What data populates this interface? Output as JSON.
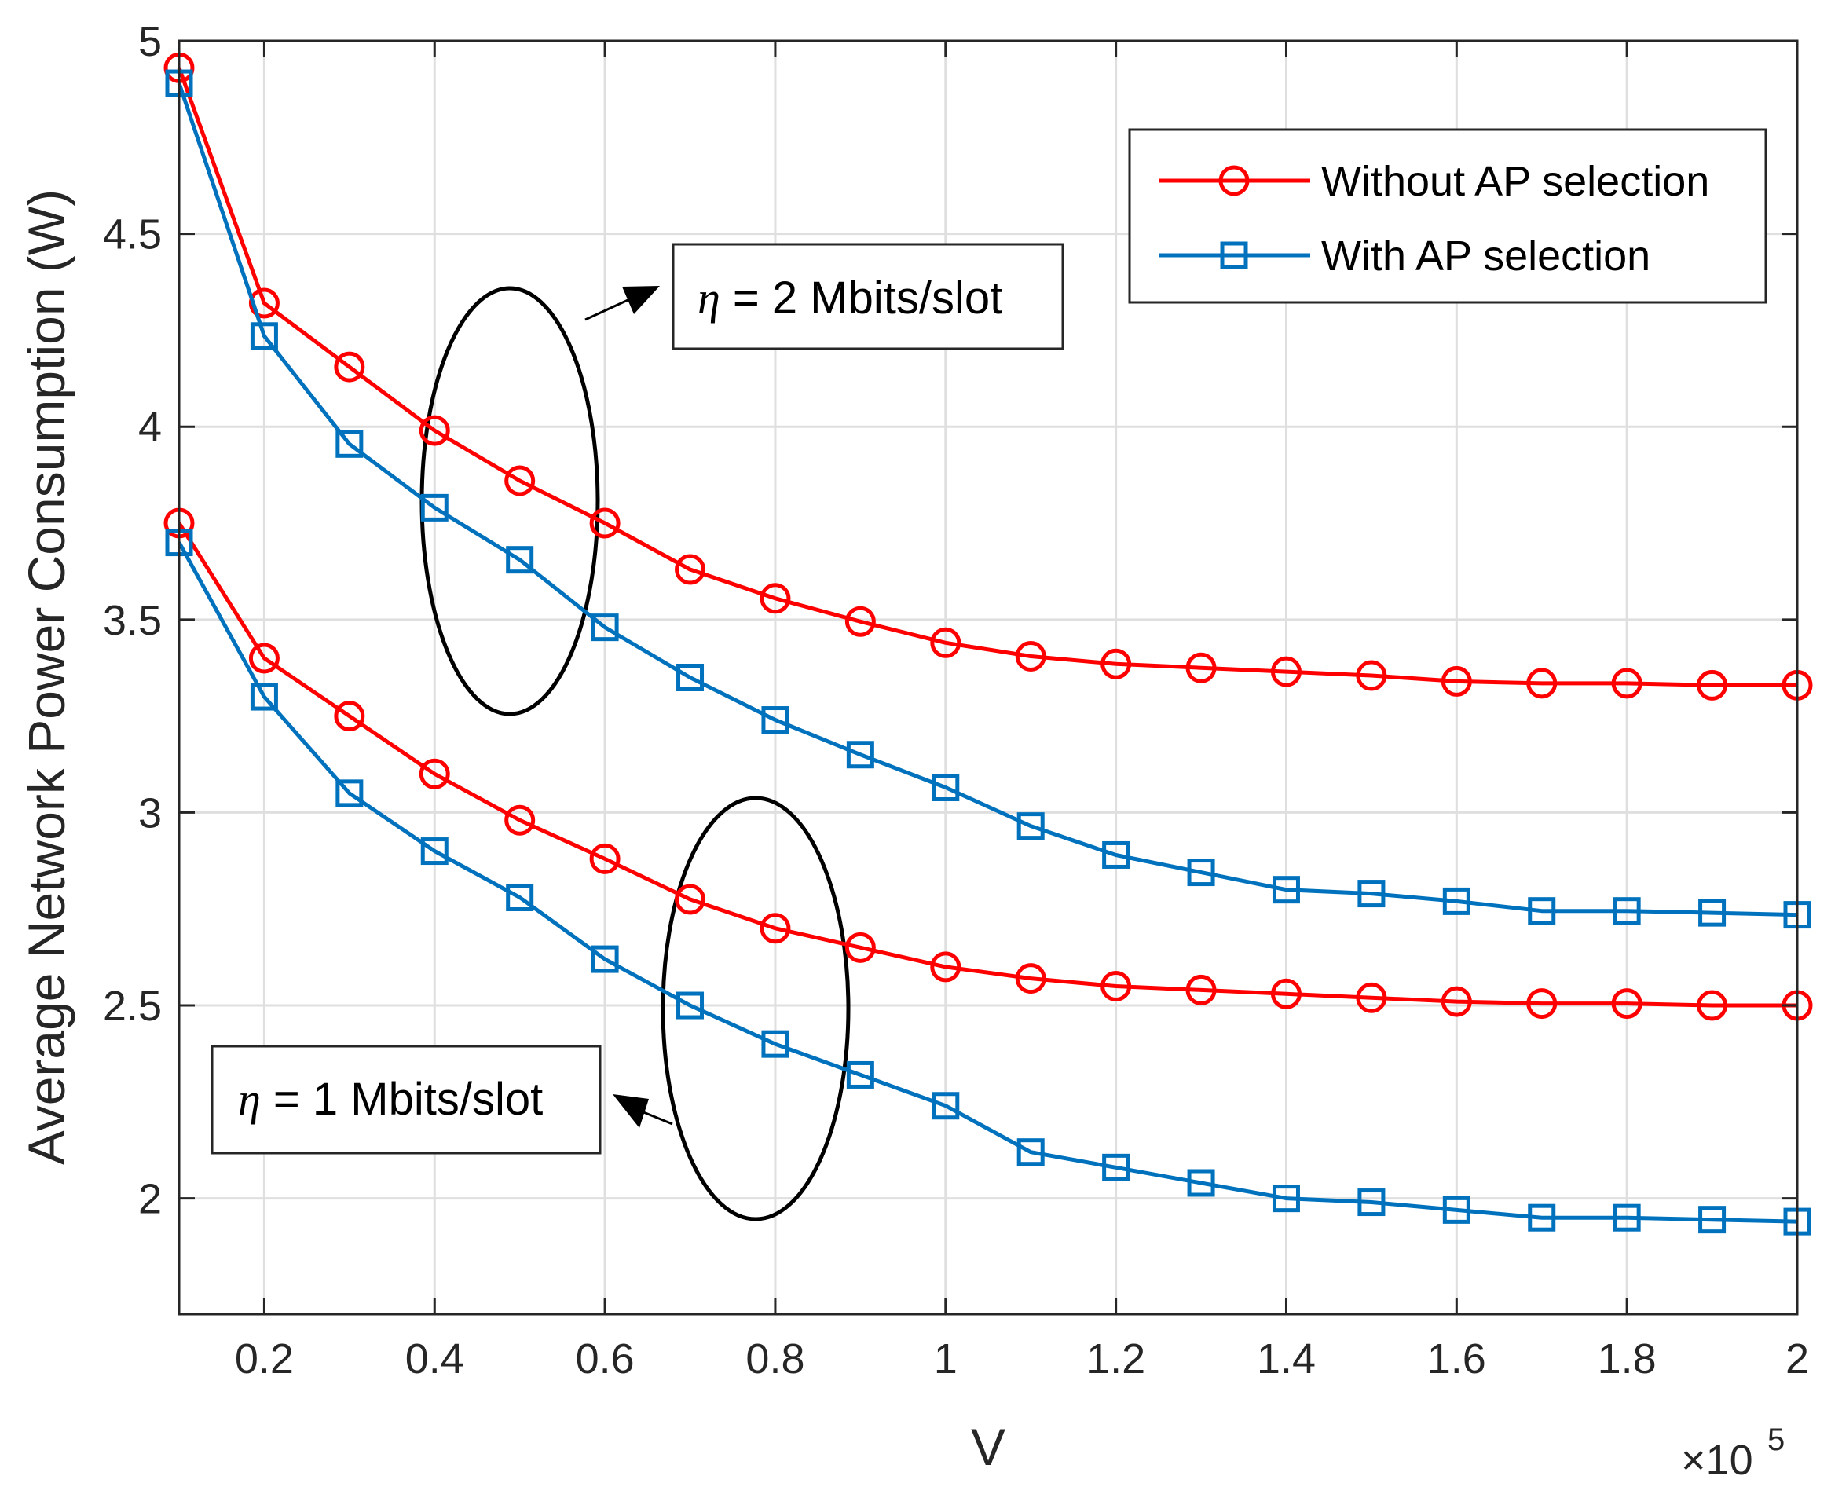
{
  "chart_data": {
    "type": "line",
    "title": "",
    "xlabel": "V",
    "ylabel": "Average Network Power Consumption (W)",
    "x_exponent_label": "×10",
    "x_exponent_power": "5",
    "xlim": [
      0.1,
      2.0
    ],
    "ylim": [
      1.7,
      5.0
    ],
    "xticks": [
      0.2,
      0.4,
      0.6,
      0.8,
      1.0,
      1.2,
      1.4,
      1.6,
      1.8,
      2.0
    ],
    "xtick_labels": [
      "0.2",
      "0.4",
      "0.6",
      "0.8",
      "1",
      "1.2",
      "1.4",
      "1.6",
      "1.8",
      "2"
    ],
    "yticks": [
      2.0,
      2.5,
      3.0,
      3.5,
      4.0,
      4.5,
      5.0
    ],
    "ytick_labels": [
      "2",
      "2.5",
      "3",
      "3.5",
      "4",
      "4.5",
      "5"
    ],
    "grid": true,
    "legend_position": "top-right",
    "x": [
      0.1,
      0.2,
      0.3,
      0.4,
      0.5,
      0.6,
      0.7,
      0.8,
      0.9,
      1.0,
      1.1,
      1.2,
      1.3,
      1.4,
      1.5,
      1.6,
      1.7,
      1.8,
      1.9,
      2.0
    ],
    "series": [
      {
        "name": "Without AP selection",
        "group": "eta = 2 Mbits/slot",
        "color": "#ff0000",
        "marker": "circle",
        "show_in_legend": true,
        "values": [
          4.93,
          4.32,
          4.155,
          3.99,
          3.86,
          3.75,
          3.63,
          3.555,
          3.495,
          3.44,
          3.405,
          3.385,
          3.375,
          3.365,
          3.355,
          3.34,
          3.335,
          3.335,
          3.33,
          3.33
        ]
      },
      {
        "name": "With AP selection",
        "group": "eta = 2 Mbits/slot",
        "color": "#0072bd",
        "marker": "square",
        "show_in_legend": true,
        "values": [
          4.89,
          4.235,
          3.955,
          3.79,
          3.655,
          3.48,
          3.35,
          3.24,
          3.15,
          3.065,
          2.965,
          2.89,
          2.845,
          2.8,
          2.79,
          2.77,
          2.745,
          2.745,
          2.74,
          2.735
        ]
      },
      {
        "name": "Without AP selection",
        "group": "eta = 1 Mbits/slot",
        "color": "#ff0000",
        "marker": "circle",
        "show_in_legend": false,
        "values": [
          3.75,
          3.4,
          3.25,
          3.1,
          2.98,
          2.88,
          2.775,
          2.7,
          2.65,
          2.6,
          2.57,
          2.55,
          2.54,
          2.53,
          2.52,
          2.51,
          2.505,
          2.505,
          2.5,
          2.5
        ]
      },
      {
        "name": "With AP selection",
        "group": "eta = 1 Mbits/slot",
        "color": "#0072bd",
        "marker": "square",
        "show_in_legend": false,
        "values": [
          3.7,
          3.3,
          3.05,
          2.9,
          2.78,
          2.62,
          2.5,
          2.4,
          2.32,
          2.24,
          2.12,
          2.08,
          2.04,
          2.0,
          1.99,
          1.97,
          1.95,
          1.95,
          1.945,
          1.94
        ]
      }
    ],
    "annotations": [
      {
        "symbol": "η",
        "text": " = 2 Mbits/slot"
      },
      {
        "symbol": "η",
        "text": " = 1 Mbits/slot"
      }
    ]
  }
}
